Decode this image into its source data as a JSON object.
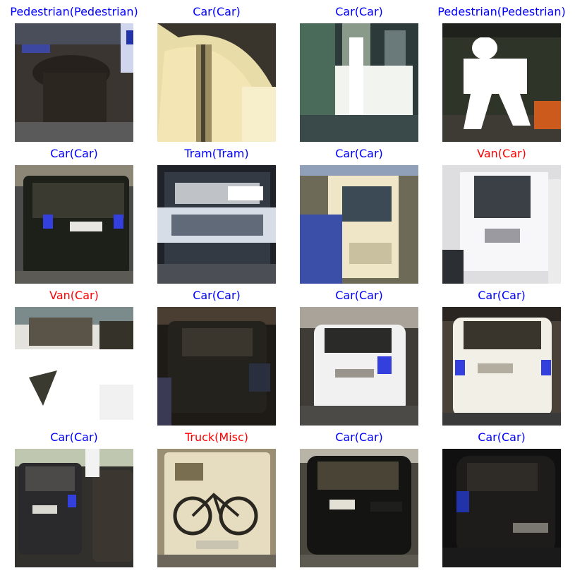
{
  "colors": {
    "correct": "#0000ff",
    "incorrect": "#ff0000"
  },
  "panels": [
    {
      "title": "Pedestrian(Pedestrian)",
      "correct": true,
      "icon": "blurred-pedestrian-crop"
    },
    {
      "title": "Car(Car)",
      "correct": true,
      "icon": "car-door-closeup-crop"
    },
    {
      "title": "Car(Car)",
      "correct": true,
      "icon": "blurred-car-crop"
    },
    {
      "title": "Pedestrian(Pedestrian)",
      "correct": true,
      "icon": "pedestrian-crop"
    },
    {
      "title": "Car(Car)",
      "correct": true,
      "icon": "car-rear-crop"
    },
    {
      "title": "Tram(Tram)",
      "correct": true,
      "icon": "tram-crop"
    },
    {
      "title": "Car(Car)",
      "correct": true,
      "icon": "blurred-van-crop"
    },
    {
      "title": "Van(Car)",
      "correct": false,
      "icon": "van-rear-crop"
    },
    {
      "title": "Van(Car)",
      "correct": false,
      "icon": "white-van-crop"
    },
    {
      "title": "Car(Car)",
      "correct": true,
      "icon": "dark-car-crop"
    },
    {
      "title": "Car(Car)",
      "correct": true,
      "icon": "white-car-rear-crop"
    },
    {
      "title": "Car(Car)",
      "correct": true,
      "icon": "white-suv-rear-crop"
    },
    {
      "title": "Car(Car)",
      "correct": true,
      "icon": "parked-cars-crop"
    },
    {
      "title": "Truck(Misc)",
      "correct": false,
      "icon": "camper-with-bikes-crop"
    },
    {
      "title": "Car(Car)",
      "correct": true,
      "icon": "black-suv-rear-crop"
    },
    {
      "title": "Car(Car)",
      "correct": true,
      "icon": "dark-hatchback-crop"
    }
  ]
}
